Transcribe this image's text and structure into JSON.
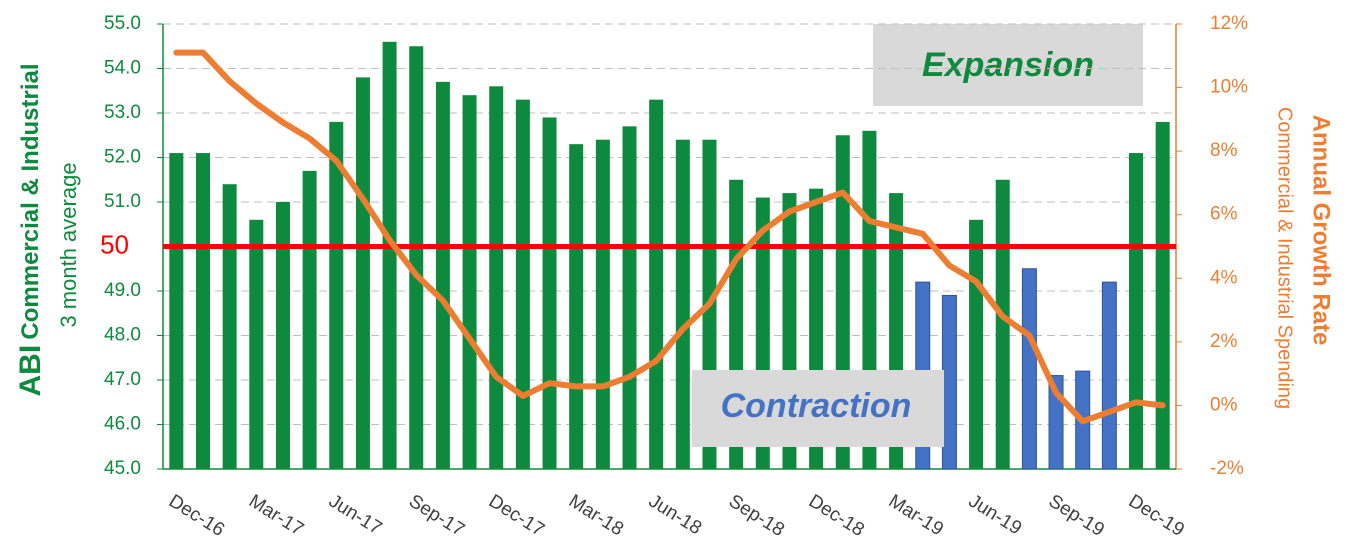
{
  "chart_data": {
    "type": "bar_line",
    "y_label_bold": "ABI",
    "y_label_rest": "Commercial & Industrial",
    "y_label_sub": "3 month average",
    "y2_label": "Annual Growth Rate",
    "y2_label_sub": "Commercial & Industrial Spending",
    "annotations": [
      "Expansion",
      "Contraction"
    ],
    "categories": [
      "Dec-16",
      null,
      null,
      "Mar-17",
      null,
      null,
      "Jun-17",
      null,
      null,
      "Sep-17",
      null,
      null,
      "Dec-17",
      null,
      null,
      "Mar-18",
      null,
      null,
      "Jun-18",
      null,
      null,
      "Sep-18",
      null,
      null,
      "Dec-18",
      null,
      null,
      "Mar-19",
      null,
      null,
      "Jun-19",
      null,
      null,
      "Sep-19",
      null,
      null,
      "Dec-19",
      null
    ],
    "series": [
      {
        "name": "ABI Commercial & Industrial",
        "color": "#0e8a3e",
        "below_color": "#4472c4",
        "values": [
          52.1,
          52.1,
          51.4,
          50.6,
          51.0,
          51.7,
          52.8,
          53.8,
          54.6,
          54.5,
          53.7,
          53.4,
          53.6,
          53.3,
          52.9,
          52.3,
          52.4,
          52.7,
          53.3,
          52.4,
          52.4,
          51.5,
          51.1,
          51.2,
          51.3,
          52.5,
          52.6,
          51.2,
          49.2,
          48.9,
          50.6,
          51.5,
          49.5,
          47.1,
          47.2,
          49.2,
          52.1,
          52.8
        ]
      },
      {
        "name": "Annual Growth Rate",
        "color": "#ed7d31",
        "axis": "y2",
        "values": [
          11.1,
          11.1,
          10.2,
          9.5,
          8.9,
          8.4,
          7.7,
          6.5,
          5.2,
          4.1,
          3.3,
          2.1,
          0.9,
          0.3,
          0.7,
          0.6,
          0.6,
          0.9,
          1.4,
          2.4,
          3.2,
          4.6,
          5.5,
          6.1,
          6.4,
          6.7,
          5.8,
          5.6,
          5.4,
          4.4,
          3.9,
          2.8,
          2.2,
          0.4,
          -0.5,
          -0.2,
          0.1,
          0.0
        ]
      }
    ],
    "reference_line": {
      "value": 50,
      "color": "#ff0000"
    },
    "ylim": [
      45,
      55
    ],
    "yticks": [
      {
        "value": 45,
        "label": "45.0"
      },
      {
        "value": 46,
        "label": "46.0"
      },
      {
        "value": 47,
        "label": "47.0"
      },
      {
        "value": 48,
        "label": "48.0"
      },
      {
        "value": 49,
        "label": "49.0"
      },
      {
        "value": 51,
        "label": "51.0"
      },
      {
        "value": 52,
        "label": "52.0"
      },
      {
        "value": 53,
        "label": "53.0"
      },
      {
        "value": 54,
        "label": "54.0"
      },
      {
        "value": 55,
        "label": "55.0"
      }
    ],
    "y2lim": [
      -2,
      12
    ],
    "y2ticks": [
      {
        "value": -2,
        "label": "-2%"
      },
      {
        "value": 0,
        "label": "0%"
      },
      {
        "value": 2,
        "label": "2%"
      },
      {
        "value": 4,
        "label": "4%"
      },
      {
        "value": 6,
        "label": "6%"
      },
      {
        "value": 8,
        "label": "8%"
      },
      {
        "value": 10,
        "label": "10%"
      },
      {
        "value": 12,
        "label": "12%"
      }
    ],
    "grid": true
  }
}
